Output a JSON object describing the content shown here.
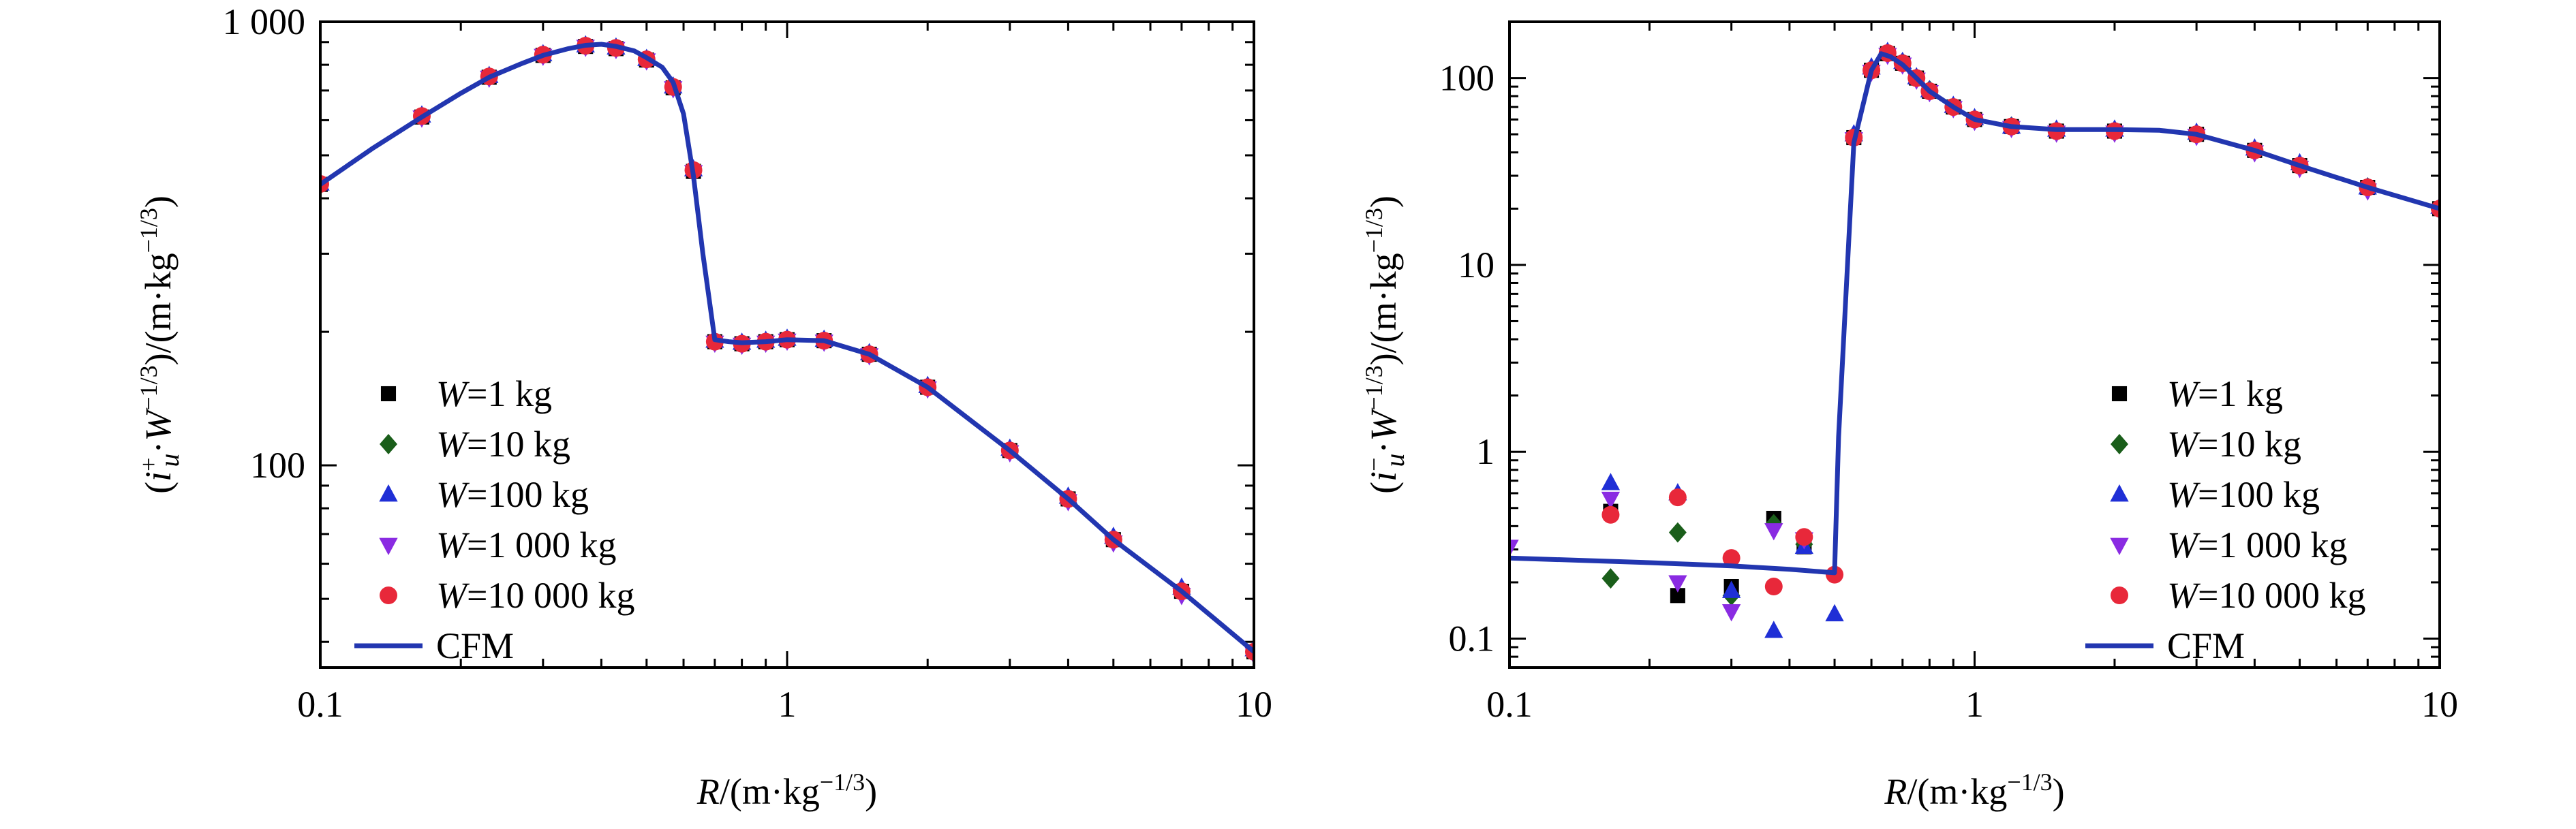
{
  "chart_data": [
    {
      "type": "scatter",
      "panel": "left",
      "xlabel": "R/(m·kg−1/3)",
      "ylabel": "(i+u·W−1/3)/(m·kg−1/3)",
      "xscale": "log",
      "yscale": "log",
      "xlim": [
        0.1,
        10
      ],
      "ylim": [
        35,
        1000
      ],
      "xticks": [
        0.1,
        1,
        10
      ],
      "xtick_labels": [
        "0.1",
        "1",
        "10"
      ],
      "yticks": [
        100,
        1000
      ],
      "ytick_labels": [
        "100",
        "1 000"
      ],
      "legend_position": "lower-left",
      "series": [
        {
          "name": "W=1 kg",
          "marker": "square",
          "color": "#000000",
          "x": [
            0.1,
            0.165,
            0.23,
            0.3,
            0.37,
            0.43,
            0.5,
            0.57,
            0.63,
            0.7,
            0.8,
            0.9,
            1.0,
            1.2,
            1.5,
            2.0,
            3.0,
            4.0,
            5.0,
            7.0,
            10.0
          ],
          "y": [
            430,
            610,
            750,
            840,
            880,
            870,
            820,
            710,
            460,
            190,
            188,
            190,
            192,
            191,
            178,
            150,
            108,
            84,
            68,
            52,
            38
          ]
        },
        {
          "name": "W=10 kg",
          "marker": "diamond",
          "color": "#1a5e1a",
          "x": [
            0.1,
            0.165,
            0.23,
            0.3,
            0.37,
            0.43,
            0.5,
            0.57,
            0.63,
            0.7,
            0.8,
            0.9,
            1.0,
            1.2,
            1.5,
            2.0,
            3.0,
            4.0,
            5.0,
            7.0,
            10.0
          ],
          "y": [
            430,
            612,
            752,
            842,
            882,
            872,
            822,
            712,
            462,
            190,
            188,
            190,
            192,
            191,
            178,
            150,
            108,
            84,
            68,
            52,
            38
          ]
        },
        {
          "name": "W=100 kg",
          "marker": "triangle-up",
          "color": "#1f2fd6",
          "x": [
            0.1,
            0.165,
            0.23,
            0.3,
            0.37,
            0.43,
            0.5,
            0.57,
            0.63,
            0.7,
            0.8,
            0.9,
            1.0,
            1.2,
            1.5,
            2.0,
            3.0,
            4.0,
            5.0,
            7.0,
            10.0
          ],
          "y": [
            432,
            615,
            755,
            845,
            885,
            875,
            825,
            715,
            465,
            191,
            189,
            191,
            193,
            192,
            179,
            151,
            109,
            85,
            69,
            53,
            38.5
          ]
        },
        {
          "name": "W=1 000 kg",
          "marker": "triangle-down",
          "color": "#8a2be2",
          "x": [
            0.1,
            0.165,
            0.23,
            0.3,
            0.37,
            0.43,
            0.5,
            0.57,
            0.63,
            0.7,
            0.8,
            0.9,
            1.0,
            1.2,
            1.5,
            2.0,
            3.0,
            4.0,
            5.0,
            7.0,
            10.0
          ],
          "y": [
            428,
            608,
            748,
            838,
            878,
            868,
            818,
            708,
            458,
            189,
            187,
            189,
            191,
            190,
            177,
            149,
            107,
            83,
            67,
            51,
            37.5
          ]
        },
        {
          "name": "W=10 000 kg",
          "marker": "circle",
          "color": "#e8283a",
          "x": [
            0.1,
            0.165,
            0.23,
            0.3,
            0.37,
            0.43,
            0.5,
            0.57,
            0.63,
            0.7,
            0.8,
            0.9,
            1.0,
            1.2,
            1.5,
            2.0,
            3.0,
            4.0,
            5.0,
            7.0,
            10.0
          ],
          "y": [
            431,
            613,
            753,
            843,
            883,
            873,
            823,
            713,
            463,
            190,
            188,
            190,
            192,
            191,
            178,
            150,
            108,
            84,
            68,
            52,
            38
          ]
        },
        {
          "name": "CFM",
          "line": true,
          "color": "#2236b0",
          "x": [
            0.1,
            0.13,
            0.165,
            0.2,
            0.23,
            0.27,
            0.3,
            0.34,
            0.37,
            0.4,
            0.43,
            0.47,
            0.5,
            0.54,
            0.57,
            0.6,
            0.63,
            0.66,
            0.7,
            0.75,
            0.8,
            0.9,
            1.0,
            1.2,
            1.5,
            2.0,
            3.0,
            4.0,
            5.0,
            7.0,
            10.0
          ],
          "y": [
            430,
            520,
            610,
            690,
            750,
            805,
            840,
            870,
            885,
            890,
            880,
            860,
            830,
            790,
            730,
            620,
            450,
            300,
            192,
            190,
            189,
            190,
            192,
            191,
            178,
            150,
            108,
            84,
            68,
            52,
            38
          ]
        }
      ]
    },
    {
      "type": "scatter",
      "panel": "right",
      "xlabel": "R/(m·kg−1/3)",
      "ylabel": "(i−u·W−1/3)/(m·kg−1/3)",
      "xscale": "log",
      "yscale": "log",
      "xlim": [
        0.1,
        10
      ],
      "ylim": [
        0.07,
        200
      ],
      "xticks": [
        0.1,
        1,
        10
      ],
      "xtick_labels": [
        "0.1",
        "1",
        "10"
      ],
      "yticks": [
        0.1,
        1,
        10,
        100
      ],
      "ytick_labels": [
        "0.1",
        "1",
        "10",
        "100"
      ],
      "legend_position": "lower-right",
      "series": [
        {
          "name": "W=1 kg",
          "marker": "square",
          "color": "#000000",
          "x": [
            0.165,
            0.23,
            0.3,
            0.37,
            0.43,
            0.55,
            0.6,
            0.65,
            0.7,
            0.75,
            0.8,
            0.9,
            1.0,
            1.2,
            1.5,
            2.0,
            3.0,
            4.0,
            5.0,
            7.0,
            10.0
          ],
          "y": [
            0.48,
            0.17,
            0.19,
            0.44,
            0.31,
            48,
            110,
            135,
            120,
            100,
            85,
            70,
            60,
            55,
            52,
            52,
            50,
            41,
            34,
            26,
            20
          ]
        },
        {
          "name": "W=10 kg",
          "marker": "diamond",
          "color": "#1a5e1a",
          "x": [
            0.165,
            0.23,
            0.3,
            0.37,
            0.43,
            0.55,
            0.6,
            0.65,
            0.7,
            0.75,
            0.8,
            0.9,
            1.0,
            1.2,
            1.5,
            2.0,
            3.0,
            4.0,
            5.0,
            7.0,
            10.0
          ],
          "y": [
            0.21,
            0.37,
            0.17,
            0.41,
            0.32,
            49,
            112,
            136,
            121,
            100,
            86,
            70,
            60,
            55,
            52,
            52,
            50,
            41,
            34,
            26,
            20
          ]
        },
        {
          "name": "W=100 kg",
          "marker": "triangle-up",
          "color": "#1f2fd6",
          "x": [
            0.165,
            0.23,
            0.3,
            0.37,
            0.43,
            0.5,
            0.55,
            0.6,
            0.65,
            0.7,
            0.75,
            0.8,
            0.9,
            1.0,
            1.2,
            1.5,
            2.0,
            3.0,
            4.0,
            5.0,
            7.0,
            10.0
          ],
          "y": [
            0.68,
            0.6,
            0.18,
            0.11,
            0.31,
            0.135,
            50,
            114,
            138,
            122,
            101,
            86,
            71,
            61,
            55,
            53,
            53,
            51,
            42,
            35,
            26,
            20.5
          ]
        },
        {
          "name": "W=1 000 kg",
          "marker": "triangle-down",
          "color": "#8a2be2",
          "x": [
            0.1,
            0.165,
            0.23,
            0.3,
            0.37,
            0.43,
            0.55,
            0.6,
            0.65,
            0.7,
            0.75,
            0.8,
            0.9,
            1.0,
            1.2,
            1.5,
            2.0,
            3.0,
            4.0,
            5.0,
            7.0,
            10.0
          ],
          "y": [
            0.31,
            0.56,
            0.2,
            0.14,
            0.38,
            0.34,
            47,
            108,
            133,
            118,
            98,
            84,
            69,
            59,
            54,
            51,
            51,
            49,
            40,
            33,
            25,
            19.5
          ]
        },
        {
          "name": "W=10 000 kg",
          "marker": "circle",
          "color": "#e8283a",
          "x": [
            0.165,
            0.23,
            0.3,
            0.37,
            0.43,
            0.5,
            0.55,
            0.6,
            0.65,
            0.7,
            0.75,
            0.8,
            0.9,
            1.0,
            1.2,
            1.5,
            2.0,
            3.0,
            4.0,
            5.0,
            7.0,
            10.0
          ],
          "y": [
            0.46,
            0.57,
            0.27,
            0.19,
            0.35,
            0.22,
            48,
            110,
            136,
            120,
            100,
            85,
            70,
            60,
            55,
            52,
            52,
            50,
            41,
            34,
            26,
            20
          ]
        },
        {
          "name": "CFM",
          "line": true,
          "color": "#2236b0",
          "x": [
            0.1,
            0.2,
            0.3,
            0.4,
            0.5,
            0.51,
            0.55,
            0.6,
            0.63,
            0.66,
            0.7,
            0.75,
            0.8,
            0.9,
            1.0,
            1.2,
            1.5,
            2.0,
            2.5,
            3.0,
            4.0,
            5.0,
            7.0,
            10.0
          ],
          "y": [
            0.27,
            0.255,
            0.245,
            0.235,
            0.225,
            1.2,
            45,
            110,
            135,
            130,
            118,
            100,
            85,
            70,
            60,
            55,
            53,
            53,
            52.5,
            50,
            41,
            34,
            26,
            20
          ]
        }
      ]
    }
  ]
}
